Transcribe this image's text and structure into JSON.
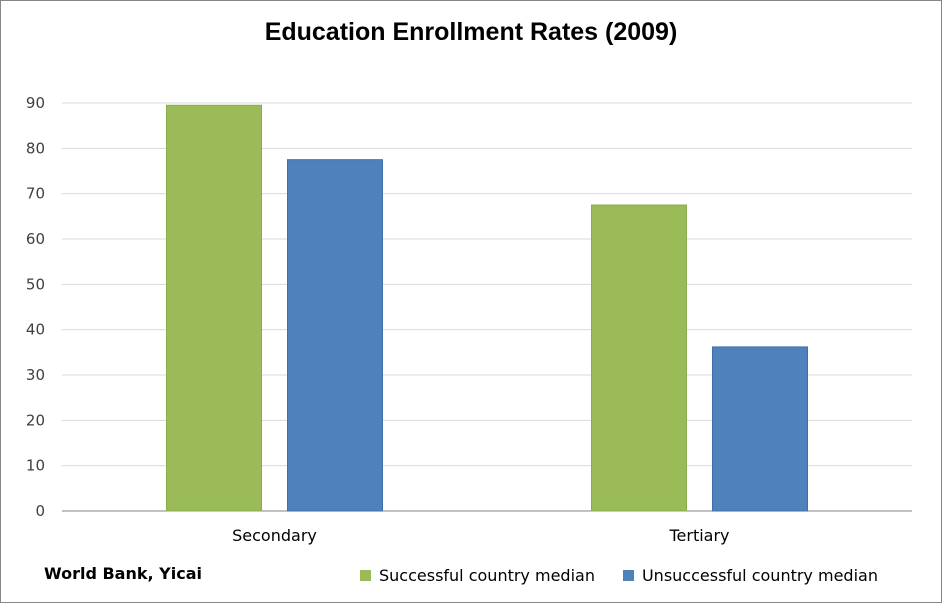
{
  "chart_data": {
    "type": "bar",
    "title": "Education Enrollment Rates (2009)",
    "categories": [
      "Secondary",
      "Tertiary"
    ],
    "series": [
      {
        "name": "Successful country median",
        "values": [
          89.5,
          67.5
        ],
        "color": "#9BBB59"
      },
      {
        "name": "Unsuccessful country median",
        "values": [
          77.5,
          36.2
        ],
        "color": "#4F81BD"
      }
    ],
    "xlabel": "",
    "ylabel": "",
    "ylim": [
      0,
      90
    ],
    "yticks": [
      0,
      10,
      20,
      30,
      40,
      50,
      60,
      70,
      80,
      90
    ],
    "grid": true,
    "legend_position": "bottom-right"
  },
  "source_note": "World Bank, Yicai"
}
